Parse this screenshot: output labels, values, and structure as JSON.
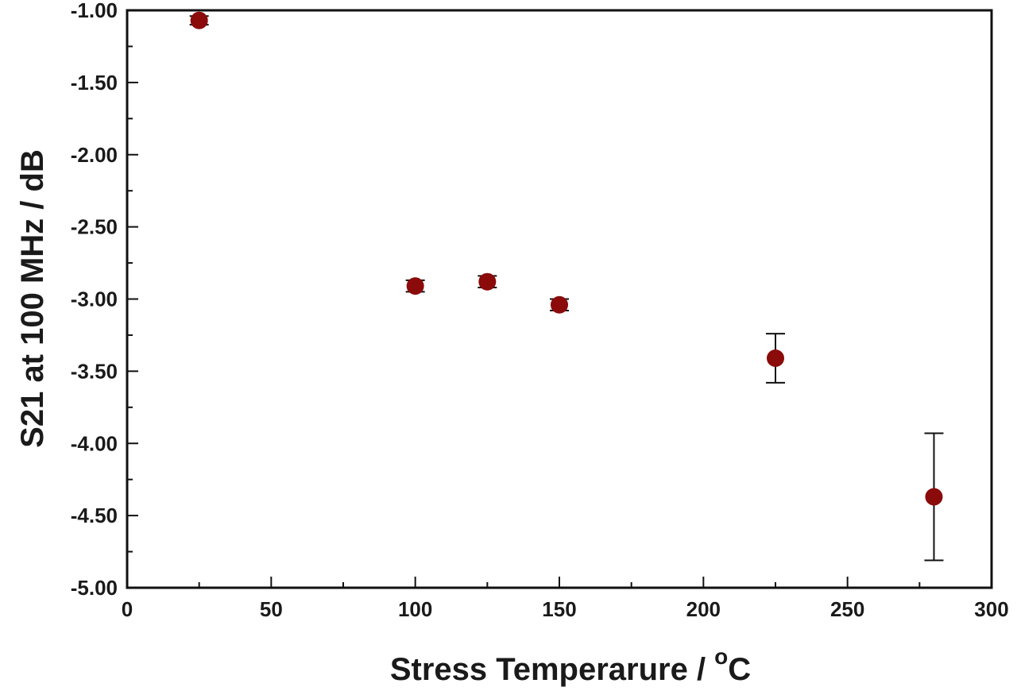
{
  "chart_data": {
    "type": "scatter",
    "xlabel": "Stress Temperarure  / ",
    "xlabel_unit_sup": "o",
    "xlabel_unit": "C",
    "ylabel": "S21 at 100 MHz / dB",
    "xlim": [
      0,
      300
    ],
    "ylim": [
      -5.0,
      -1.0
    ],
    "x_ticks": [
      0,
      50,
      100,
      150,
      200,
      250,
      300
    ],
    "x_tick_labels": [
      "0",
      "50",
      "100",
      "150",
      "200",
      "250",
      "300"
    ],
    "x_minor_step": 25,
    "y_ticks": [
      -1.0,
      -1.5,
      -2.0,
      -2.5,
      -3.0,
      -3.5,
      -4.0,
      -4.5,
      -5.0
    ],
    "y_tick_labels": [
      "-1.00",
      "-1.50",
      "-2.00",
      "-2.50",
      "-3.00",
      "-3.50",
      "-4.00",
      "-4.50",
      "-5.00"
    ],
    "y_minor_step": 0.25,
    "grid": false,
    "legend": "none",
    "marker_color": "#8b0a0a",
    "series": [
      {
        "points": [
          {
            "x": 25,
            "y": -1.07,
            "err": 0.03
          },
          {
            "x": 100,
            "y": -2.91,
            "err": 0.04
          },
          {
            "x": 125,
            "y": -2.88,
            "err": 0.04
          },
          {
            "x": 150,
            "y": -3.04,
            "err": 0.04
          },
          {
            "x": 225,
            "y": -3.41,
            "err": 0.17
          },
          {
            "x": 280,
            "y": -4.37,
            "err": 0.44
          }
        ]
      }
    ]
  }
}
